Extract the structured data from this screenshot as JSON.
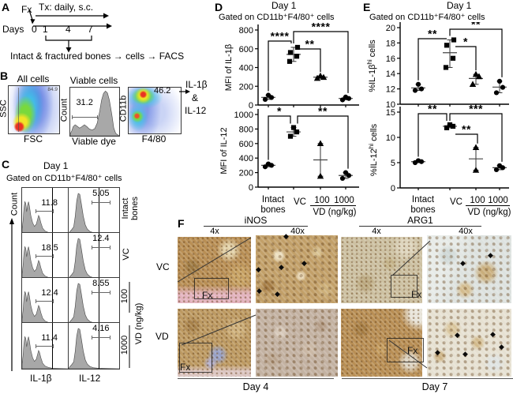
{
  "figure": {
    "panel_a": {
      "label": "A",
      "fx": "Fx",
      "treatment": "Tx: daily, s.c.",
      "days_label": "Days",
      "day_ticks": [
        "0",
        "1",
        "4",
        "7"
      ],
      "workflow": "Intact & fractured bones  →  cells → FACS"
    },
    "panel_b": {
      "label": "B",
      "fsc": {
        "title": "All cells",
        "gate": "84.9",
        "xlabel": "FSC",
        "ylabel": "SSC"
      },
      "viability": {
        "title": "Viable cells",
        "gate": "31.2",
        "xlabel": "Viable dye",
        "ylabel": "Count"
      },
      "macrophage": {
        "gate": "46.2",
        "xlabel": "F4/80",
        "ylabel": "CD11b"
      },
      "readouts": [
        "IL-1β",
        "&",
        "IL-12"
      ]
    },
    "panel_c": {
      "label": "C",
      "title": "Day 1",
      "subtitle": "Gated on CD11b⁺F4/80⁺ cells",
      "ylabel": "Count",
      "xlabels": [
        "IL-1β",
        "IL-12"
      ],
      "dose_axis": "VD (ng/kg)",
      "rows": [
        {
          "group": "Intact bones",
          "il1b_pct": "11.8",
          "il12_pct": "5.05"
        },
        {
          "group": "VC",
          "il1b_pct": "18.5",
          "il12_pct": "12.4"
        },
        {
          "group": "100",
          "il1b_pct": "12.4",
          "il12_pct": "8.55"
        },
        {
          "group": "1000",
          "il1b_pct": "11.4",
          "il12_pct": "4.16"
        }
      ]
    },
    "panel_d": {
      "label": "D",
      "title": "Day 1",
      "subtitle": "Gated on CD11b⁺F4/80⁺ cells"
    },
    "panel_e": {
      "label": "E",
      "title": "Day 1",
      "subtitle": "Gated on CD11b⁺F4/80⁺ cells"
    },
    "panel_f": {
      "label": "F",
      "stains": [
        "iNOS",
        "ARG1"
      ],
      "magnifications": [
        "4x",
        "40x"
      ],
      "row_labels": [
        "VC",
        "VD"
      ],
      "fracture_label": "Fx",
      "timepoints": [
        "Day 4",
        "Day 7"
      ],
      "marker_glyph": "◆"
    }
  },
  "chart_data": [
    {
      "id": "mfi_il1b",
      "type": "scatter",
      "ylabel": "MFI of IL-1β",
      "ylim": [
        0,
        800
      ],
      "yticks": [
        0,
        200,
        400,
        600,
        800
      ],
      "categories": [
        "Intact bones",
        "VC",
        "100",
        "1000"
      ],
      "group_axis_label": "VD (ng/kg)",
      "series": [
        {
          "category": "Intact bones",
          "marker": "circle",
          "values": [
            60,
            80,
            105
          ]
        },
        {
          "category": "VC",
          "marker": "square",
          "values": [
            465,
            520,
            560,
            615
          ]
        },
        {
          "category": "100",
          "marker": "triangle",
          "values": [
            285,
            295,
            310
          ]
        },
        {
          "category": "1000",
          "marker": "circle",
          "values": [
            55,
            70,
            85
          ]
        }
      ],
      "significance": [
        {
          "from": "Intact bones",
          "to": "VC",
          "label": "****"
        },
        {
          "from": "VC",
          "to": "100",
          "label": "**"
        },
        {
          "from": "VC",
          "to": "1000",
          "label": "****"
        }
      ]
    },
    {
      "id": "mfi_il12",
      "type": "scatter",
      "ylabel": "MFI of IL-12",
      "ylim": [
        0,
        1000
      ],
      "yticks": [
        0,
        200,
        400,
        600,
        800,
        1000
      ],
      "categories": [
        "Intact bones",
        "VC",
        "100",
        "1000"
      ],
      "group_axis_label": "VD (ng/kg)",
      "series": [
        {
          "category": "Intact bones",
          "marker": "circle",
          "values": [
            280,
            300,
            320
          ]
        },
        {
          "category": "VC",
          "marker": "square",
          "values": [
            700,
            760,
            820
          ]
        },
        {
          "category": "100",
          "marker": "triangle",
          "values": [
            150,
            600
          ]
        },
        {
          "category": "1000",
          "marker": "circle",
          "values": [
            120,
            160,
            200
          ]
        }
      ],
      "significance": [
        {
          "from": "Intact bones",
          "to": "VC",
          "label": "*"
        },
        {
          "from": "VC",
          "to": "1000",
          "label": "**"
        }
      ]
    },
    {
      "id": "pct_il1b_hi",
      "type": "scatter",
      "ylabel": "%IL-1β^hi^ cells",
      "ylim": [
        10,
        20
      ],
      "yticks": [
        10,
        12,
        14,
        16,
        18,
        20
      ],
      "categories": [
        "Intact bones",
        "VC",
        "100",
        "1000"
      ],
      "group_axis_label": "VD (ng/kg)",
      "series": [
        {
          "category": "Intact bones",
          "marker": "circle",
          "values": [
            11.8,
            12.0,
            12.6
          ]
        },
        {
          "category": "VC",
          "marker": "square",
          "values": [
            14.8,
            16.0,
            17.7,
            18.4
          ]
        },
        {
          "category": "100",
          "marker": "triangle",
          "values": [
            12.6,
            13.6,
            13.9
          ]
        },
        {
          "category": "1000",
          "marker": "circle",
          "values": [
            11.5,
            12.2,
            13.0
          ]
        }
      ],
      "significance": [
        {
          "from": "Intact bones",
          "to": "VC",
          "label": "**"
        },
        {
          "from": "VC",
          "to": "100",
          "label": "*"
        },
        {
          "from": "VC",
          "to": "1000",
          "label": "**"
        }
      ]
    },
    {
      "id": "pct_il12_hi",
      "type": "scatter",
      "ylabel": "%IL-12^hi^ cells",
      "ylim": [
        0,
        15
      ],
      "yticks": [
        0,
        5,
        10,
        15
      ],
      "categories": [
        "Intact bones",
        "VC",
        "100",
        "1000"
      ],
      "group_axis_label": "VD (ng/kg)",
      "series": [
        {
          "category": "Intact bones",
          "marker": "circle",
          "values": [
            5.0,
            5.2,
            5.4
          ]
        },
        {
          "category": "VC",
          "marker": "square",
          "values": [
            11.9,
            12.2,
            12.5
          ]
        },
        {
          "category": "100",
          "marker": "triangle",
          "values": [
            3.5,
            8.0
          ]
        },
        {
          "category": "1000",
          "marker": "circle",
          "values": [
            3.6,
            4.0,
            4.4
          ]
        }
      ],
      "significance": [
        {
          "from": "Intact bones",
          "to": "VC",
          "label": "**"
        },
        {
          "from": "VC",
          "to": "100",
          "label": "**"
        },
        {
          "from": "VC",
          "to": "1000",
          "label": "***"
        }
      ]
    }
  ]
}
